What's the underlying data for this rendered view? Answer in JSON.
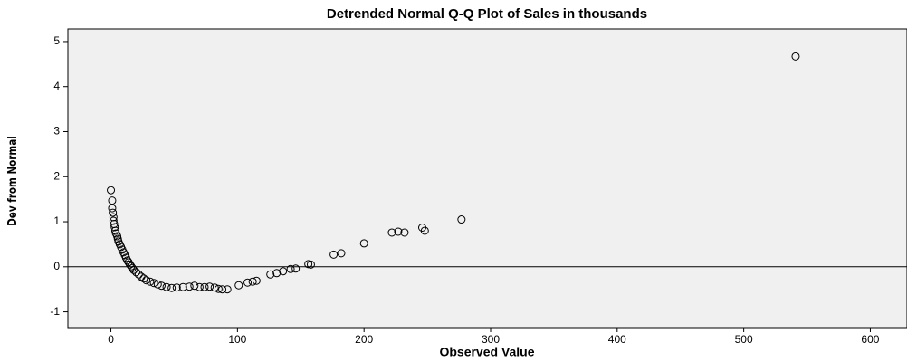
{
  "chart_data": {
    "type": "scatter",
    "title": "Detrended Normal Q-Q Plot of Sales in thousands",
    "x_label": "Observed Value",
    "y_label": "Dev from Normal",
    "x": [
      0,
      1,
      1,
      1.5,
      2,
      2,
      2.5,
      3,
      3.5,
      4,
      5,
      5.5,
      6,
      7,
      8,
      9,
      10,
      11,
      12,
      13,
      14,
      15,
      16,
      17,
      18,
      20,
      22,
      24,
      26,
      28,
      31,
      34,
      37,
      40,
      44,
      48,
      52,
      57,
      62,
      66,
      70,
      74,
      78,
      82,
      85,
      88,
      92,
      101,
      108,
      112,
      115,
      126,
      131,
      136,
      142,
      146,
      156,
      158,
      176,
      182,
      200,
      222,
      227,
      232,
      246,
      248,
      277,
      541
    ],
    "values": [
      1.7,
      1.47,
      1.3,
      1.2,
      1.1,
      1.02,
      0.95,
      0.88,
      0.8,
      0.74,
      0.68,
      0.62,
      0.56,
      0.5,
      0.44,
      0.38,
      0.32,
      0.26,
      0.2,
      0.14,
      0.1,
      0.05,
      0.01,
      -0.03,
      -0.07,
      -0.12,
      -0.17,
      -0.22,
      -0.26,
      -0.3,
      -0.33,
      -0.36,
      -0.39,
      -0.42,
      -0.45,
      -0.47,
      -0.46,
      -0.45,
      -0.44,
      -0.42,
      -0.45,
      -0.45,
      -0.44,
      -0.46,
      -0.49,
      -0.5,
      -0.5,
      -0.41,
      -0.35,
      -0.33,
      -0.31,
      -0.17,
      -0.14,
      -0.1,
      -0.05,
      -0.04,
      0.06,
      0.05,
      0.27,
      0.3,
      0.52,
      0.76,
      0.78,
      0.76,
      0.87,
      0.8,
      1.05,
      4.67
    ],
    "color": "#000000",
    "reference_y": 0,
    "xlim": [
      -34,
      629
    ],
    "xticks": [
      0,
      100,
      200,
      300,
      400,
      500,
      600
    ],
    "ylim": [
      -1.35,
      5.28
    ],
    "yticks": [
      -1,
      0,
      1,
      2,
      3,
      4,
      5
    ]
  }
}
